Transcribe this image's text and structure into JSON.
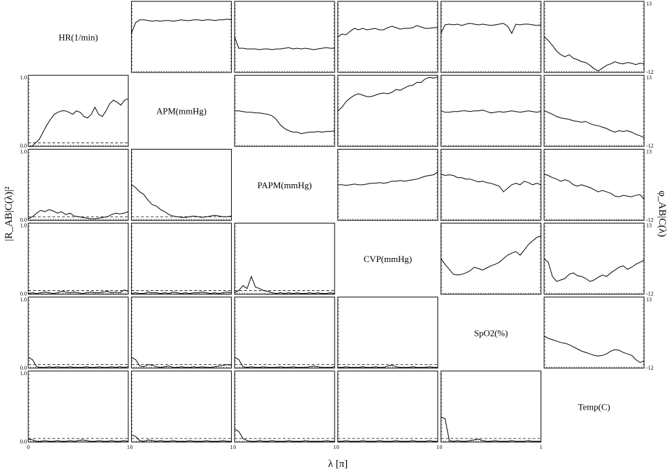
{
  "chart_data": {
    "type": "line",
    "layout": "matrix",
    "variables": [
      "HR(1/min)",
      "APM(mmHg)",
      "PAPM(mmHg)",
      "CVP(mmHg)",
      "SpO2(%)",
      "Temp(C)"
    ],
    "xlabel": "λ [π]",
    "ylabel_left": "|R_AB|C(λ)|²",
    "ylabel_right": "φ_AB|C(λ)",
    "x_range": [
      0,
      1
    ],
    "x_tick_labels": [
      "0",
      "1"
    ],
    "coherence_ylim": [
      0,
      1
    ],
    "coherence_tick_labels": [
      "0.0",
      "1.0"
    ],
    "coherence_threshold": 0.05,
    "phase_tick_labels": [
      "-12",
      "13"
    ],
    "coherence": {
      "1,0": [
        0.0,
        0.0,
        0.05,
        0.1,
        0.2,
        0.3,
        0.38,
        0.45,
        0.48,
        0.5,
        0.5,
        0.48,
        0.45,
        0.5,
        0.48,
        0.42,
        0.4,
        0.45,
        0.55,
        0.45,
        0.42,
        0.5,
        0.6,
        0.65,
        0.62,
        0.58,
        0.65,
        0.67
      ],
      "2,0": [
        0.02,
        0.05,
        0.1,
        0.14,
        0.12,
        0.15,
        0.13,
        0.1,
        0.12,
        0.08,
        0.1,
        0.06,
        0.05,
        0.04,
        0.03,
        0.02,
        0.02,
        0.03,
        0.04,
        0.05,
        0.08,
        0.1,
        0.09,
        0.1,
        0.12
      ],
      "2,1": [
        0.5,
        0.46,
        0.4,
        0.36,
        0.28,
        0.22,
        0.2,
        0.15,
        0.12,
        0.08,
        0.06,
        0.05,
        0.04,
        0.04,
        0.05,
        0.06,
        0.05,
        0.04,
        0.05,
        0.06,
        0.07,
        0.06,
        0.05,
        0.05,
        0.06
      ],
      "3,0": [
        0.01,
        0.02,
        0.01,
        0.02,
        0.03,
        0.02,
        0.01,
        0.02,
        0.04,
        0.03,
        0.02,
        0.03,
        0.02,
        0.01,
        0.02,
        0.03,
        0.02,
        0.02,
        0.03,
        0.04,
        0.02,
        0.03,
        0.02,
        0.06,
        0.04
      ],
      "3,1": [
        0.01,
        0.02,
        0.01,
        0.01,
        0.03,
        0.02,
        0.02,
        0.01,
        0.02,
        0.01,
        0.03,
        0.02,
        0.01,
        0.02,
        0.01,
        0.02,
        0.02,
        0.03,
        0.02,
        0.01,
        0.02,
        0.01,
        0.02,
        0.03,
        0.02
      ],
      "3,2": [
        0.02,
        0.05,
        0.12,
        0.08,
        0.25,
        0.1,
        0.08,
        0.05,
        0.04,
        0.02,
        0.01,
        0.02,
        0.01,
        0.02,
        0.01,
        0.02,
        0.01,
        0.01,
        0.02,
        0.01,
        0.02,
        0.01,
        0.01,
        0.02,
        0.01
      ],
      "4,0": [
        0.15,
        0.12,
        0.02,
        0.01,
        0.01,
        0.02,
        0.01,
        0.02,
        0.01,
        0.01,
        0.02,
        0.01,
        0.01,
        0.01,
        0.02,
        0.01,
        0.01,
        0.02,
        0.01,
        0.01,
        0.02,
        0.01,
        0.02,
        0.01,
        0.02
      ],
      "4,1": [
        0.15,
        0.12,
        0.03,
        0.02,
        0.05,
        0.04,
        0.02,
        0.01,
        0.02,
        0.03,
        0.01,
        0.01,
        0.02,
        0.01,
        0.01,
        0.02,
        0.01,
        0.02,
        0.01,
        0.01,
        0.02,
        0.03,
        0.04,
        0.05,
        0.04
      ],
      "4,2": [
        0.15,
        0.12,
        0.02,
        0.01,
        0.02,
        0.01,
        0.01,
        0.02,
        0.01,
        0.01,
        0.01,
        0.02,
        0.01,
        0.01,
        0.02,
        0.01,
        0.01,
        0.01,
        0.02,
        0.03,
        0.02,
        0.01,
        0.01,
        0.01,
        0.02
      ],
      "4,3": [
        0.01,
        0.01,
        0.02,
        0.01,
        0.01,
        0.01,
        0.02,
        0.01,
        0.01,
        0.02,
        0.01,
        0.01,
        0.03,
        0.04,
        0.02,
        0.01,
        0.01,
        0.01,
        0.02,
        0.01,
        0.01,
        0.01,
        0.02,
        0.01,
        0.01
      ],
      "5,0": [
        0.04,
        0.03,
        0.01,
        0.01,
        0.02,
        0.01,
        0.01,
        0.02,
        0.01,
        0.01,
        0.02,
        0.01,
        0.02,
        0.03,
        0.02,
        0.01,
        0.01,
        0.02,
        0.01,
        0.01,
        0.02,
        0.01,
        0.01,
        0.02,
        0.01
      ],
      "5,1": [
        0.1,
        0.08,
        0.02,
        0.01,
        0.03,
        0.02,
        0.01,
        0.02,
        0.01,
        0.01,
        0.02,
        0.01,
        0.01,
        0.01,
        0.02,
        0.01,
        0.01,
        0.01,
        0.02,
        0.01,
        0.01,
        0.01,
        0.02,
        0.01,
        0.01
      ],
      "5,2": [
        0.18,
        0.15,
        0.05,
        0.02,
        0.01,
        0.01,
        0.02,
        0.01,
        0.01,
        0.02,
        0.01,
        0.01,
        0.01,
        0.02,
        0.01,
        0.01,
        0.01,
        0.02,
        0.01,
        0.01,
        0.01,
        0.01,
        0.02,
        0.01,
        0.01
      ],
      "5,3": [
        0.01,
        0.01,
        0.02,
        0.01,
        0.01,
        0.01,
        0.02,
        0.01,
        0.01,
        0.01,
        0.02,
        0.01,
        0.01,
        0.01,
        0.02,
        0.01,
        0.01,
        0.01,
        0.02,
        0.01,
        0.01,
        0.01,
        0.02,
        0.01,
        0.01
      ],
      "5,4": [
        0.35,
        0.33,
        0.02,
        0.01,
        0.02,
        0.01,
        0.01,
        0.02,
        0.03,
        0.04,
        0.02,
        0.01,
        0.01,
        0.02,
        0.01,
        0.01,
        0.01,
        0.02,
        0.01,
        0.01,
        0.01,
        0.02,
        0.01,
        0.01,
        0.01
      ]
    },
    "phase": {
      "0,1": [
        0.55,
        0.7,
        0.74,
        0.74,
        0.73,
        0.72,
        0.73,
        0.72,
        0.73,
        0.73,
        0.72,
        0.73,
        0.74,
        0.73,
        0.73,
        0.74,
        0.74,
        0.73,
        0.74,
        0.74,
        0.73,
        0.74,
        0.74,
        0.75,
        0.74
      ],
      "0,2": [
        0.5,
        0.34,
        0.34,
        0.33,
        0.33,
        0.33,
        0.32,
        0.33,
        0.33,
        0.32,
        0.33,
        0.33,
        0.34,
        0.35,
        0.33,
        0.34,
        0.33,
        0.34,
        0.33,
        0.32,
        0.33,
        0.34,
        0.35,
        0.34,
        0.34
      ],
      "0,3": [
        0.5,
        0.54,
        0.53,
        0.58,
        0.62,
        0.6,
        0.62,
        0.6,
        0.61,
        0.62,
        0.6,
        0.6,
        0.63,
        0.65,
        0.63,
        0.61,
        0.62,
        0.62,
        0.63,
        0.66,
        0.64,
        0.62,
        0.62,
        0.63,
        0.63
      ],
      "0,4": [
        0.55,
        0.67,
        0.68,
        0.67,
        0.68,
        0.66,
        0.68,
        0.69,
        0.68,
        0.67,
        0.68,
        0.67,
        0.66,
        0.67,
        0.68,
        0.69,
        0.65,
        0.55,
        0.68,
        0.67,
        0.68,
        0.68,
        0.67,
        0.66,
        0.67
      ],
      "0,5": [
        0.5,
        0.45,
        0.38,
        0.3,
        0.25,
        0.22,
        0.25,
        0.2,
        0.18,
        0.15,
        0.14,
        0.1,
        0.05,
        0.02,
        0.06,
        0.1,
        0.12,
        0.15,
        0.13,
        0.12,
        0.14,
        0.13,
        0.11,
        0.13,
        0.12
      ],
      "1,2": [
        0.5,
        0.5,
        0.49,
        0.48,
        0.48,
        0.47,
        0.47,
        0.46,
        0.45,
        0.43,
        0.38,
        0.3,
        0.25,
        0.22,
        0.2,
        0.2,
        0.18,
        0.19,
        0.2,
        0.2,
        0.21,
        0.2,
        0.21,
        0.21,
        0.22
      ],
      "1,3": [
        0.5,
        0.55,
        0.63,
        0.68,
        0.72,
        0.74,
        0.72,
        0.7,
        0.7,
        0.72,
        0.74,
        0.75,
        0.74,
        0.76,
        0.8,
        0.79,
        0.82,
        0.85,
        0.86,
        0.9,
        0.9,
        0.95,
        0.97,
        0.96,
        0.98
      ],
      "1,4": [
        0.5,
        0.48,
        0.48,
        0.49,
        0.49,
        0.5,
        0.5,
        0.49,
        0.5,
        0.5,
        0.51,
        0.49,
        0.47,
        0.48,
        0.49,
        0.48,
        0.49,
        0.5,
        0.49,
        0.48,
        0.49,
        0.5,
        0.49,
        0.48,
        0.49
      ],
      "1,5": [
        0.5,
        0.48,
        0.45,
        0.42,
        0.4,
        0.39,
        0.38,
        0.36,
        0.35,
        0.34,
        0.35,
        0.32,
        0.3,
        0.29,
        0.27,
        0.25,
        0.22,
        0.2,
        0.22,
        0.21,
        0.22,
        0.2,
        0.17,
        0.15,
        0.12
      ],
      "2,3": [
        0.5,
        0.5,
        0.49,
        0.5,
        0.51,
        0.5,
        0.5,
        0.51,
        0.52,
        0.52,
        0.53,
        0.52,
        0.53,
        0.55,
        0.55,
        0.56,
        0.55,
        0.56,
        0.57,
        0.58,
        0.6,
        0.62,
        0.63,
        0.64,
        0.68
      ],
      "2,4": [
        0.65,
        0.63,
        0.64,
        0.63,
        0.6,
        0.6,
        0.58,
        0.58,
        0.56,
        0.54,
        0.55,
        0.53,
        0.52,
        0.5,
        0.48,
        0.4,
        0.45,
        0.5,
        0.52,
        0.5,
        0.55,
        0.53,
        0.5,
        0.52,
        0.5
      ],
      "2,5": [
        0.65,
        0.63,
        0.6,
        0.58,
        0.55,
        0.57,
        0.55,
        0.5,
        0.48,
        0.5,
        0.48,
        0.46,
        0.43,
        0.4,
        0.42,
        0.4,
        0.38,
        0.34,
        0.33,
        0.35,
        0.34,
        0.33,
        0.35,
        0.36,
        0.3
      ],
      "3,4": [
        0.5,
        0.42,
        0.35,
        0.28,
        0.27,
        0.28,
        0.3,
        0.33,
        0.38,
        0.36,
        0.34,
        0.37,
        0.4,
        0.42,
        0.45,
        0.5,
        0.55,
        0.58,
        0.6,
        0.55,
        0.62,
        0.7,
        0.75,
        0.8,
        0.82
      ],
      "3,5": [
        0.5,
        0.45,
        0.25,
        0.18,
        0.2,
        0.22,
        0.28,
        0.3,
        0.26,
        0.25,
        0.22,
        0.18,
        0.2,
        0.24,
        0.27,
        0.25,
        0.3,
        0.34,
        0.38,
        0.4,
        0.35,
        0.38,
        0.42,
        0.45,
        0.48
      ],
      "4,5": [
        0.45,
        0.42,
        0.4,
        0.38,
        0.36,
        0.35,
        0.33,
        0.3,
        0.27,
        0.24,
        0.22,
        0.2,
        0.18,
        0.17,
        0.18,
        0.2,
        0.24,
        0.26,
        0.25,
        0.22,
        0.2,
        0.18,
        0.12,
        0.08,
        0.1
      ]
    }
  }
}
